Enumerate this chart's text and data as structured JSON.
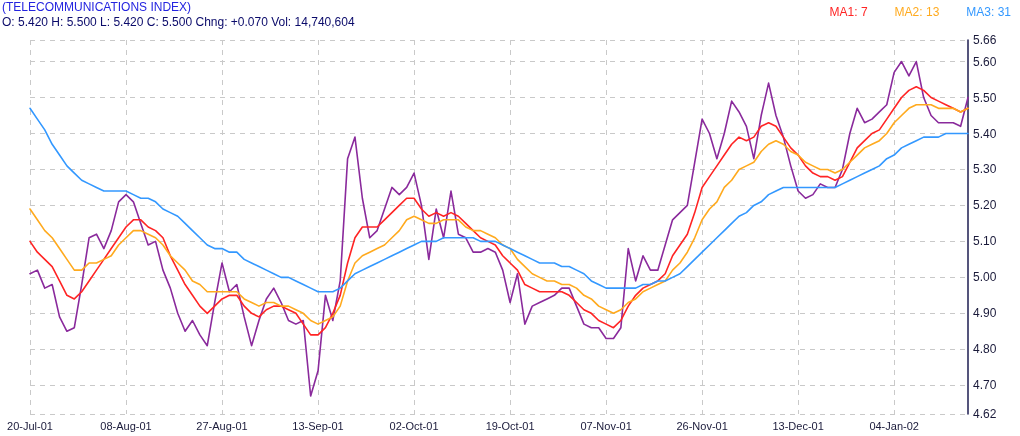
{
  "chart_data": {
    "type": "line",
    "title": "(TELECOMMUNICATIONS INDEX)",
    "subtitle": "O: 5.420 H: 5.500 L: 5.420 C: 5.500 Chng: +0.070 Vol: 14,740,604",
    "categories": [
      "20-Jul-01",
      null,
      null,
      null,
      null,
      null,
      null,
      null,
      null,
      null,
      null,
      null,
      null,
      "08-Aug-01",
      null,
      null,
      null,
      null,
      null,
      null,
      null,
      null,
      null,
      null,
      null,
      null,
      "27-Aug-01",
      null,
      null,
      null,
      null,
      null,
      null,
      null,
      null,
      null,
      null,
      null,
      null,
      "13-Sep-01",
      null,
      null,
      null,
      null,
      null,
      null,
      null,
      null,
      null,
      null,
      null,
      null,
      "02-Oct-01",
      null,
      null,
      null,
      null,
      null,
      null,
      null,
      null,
      null,
      null,
      null,
      null,
      "19-Oct-01",
      null,
      null,
      null,
      null,
      null,
      null,
      null,
      null,
      null,
      null,
      null,
      null,
      "07-Nov-01",
      null,
      null,
      null,
      null,
      null,
      null,
      null,
      null,
      null,
      null,
      null,
      null,
      "26-Nov-01",
      null,
      null,
      null,
      null,
      null,
      null,
      null,
      null,
      null,
      null,
      null,
      null,
      "13-Dec-01",
      null,
      null,
      null,
      null,
      null,
      null,
      null,
      null,
      null,
      null,
      null,
      null,
      "04-Jan-02",
      null,
      null,
      null,
      null,
      null,
      null,
      null,
      null,
      null,
      null
    ],
    "series": [
      {
        "color": "#8a2a9c",
        "values": [
          5.01,
          5.02,
          4.97,
          4.98,
          4.89,
          4.85,
          4.86,
          4.98,
          5.11,
          5.12,
          5.08,
          5.13,
          5.21,
          5.23,
          5.21,
          5.15,
          5.09,
          5.1,
          5.02,
          4.97,
          4.9,
          4.85,
          4.88,
          4.84,
          4.81,
          4.93,
          5.04,
          4.96,
          4.98,
          4.89,
          4.81,
          4.88,
          4.94,
          4.97,
          4.93,
          4.88,
          4.87,
          4.88,
          4.67,
          4.74,
          4.95,
          4.88,
          4.99,
          5.33,
          5.39,
          5.22,
          5.11,
          5.13,
          5.19,
          5.25,
          5.23,
          5.25,
          5.29,
          5.2,
          5.05,
          5.19,
          5.11,
          5.24,
          5.12,
          5.11,
          5.07,
          5.07,
          5.08,
          5.07,
          5.02,
          4.93,
          5.01,
          4.87,
          4.92,
          4.93,
          4.94,
          4.95,
          4.97,
          4.97,
          4.92,
          4.87,
          4.86,
          4.86,
          4.83,
          4.83,
          4.86,
          5.08,
          4.99,
          5.06,
          5.02,
          5.02,
          5.09,
          5.16,
          5.18,
          5.2,
          5.32,
          5.44,
          5.4,
          5.33,
          5.4,
          5.49,
          5.46,
          5.42,
          5.33,
          5.45,
          5.54,
          5.45,
          5.39,
          5.31,
          5.24,
          5.22,
          5.23,
          5.26,
          5.25,
          5.25,
          5.3,
          5.4,
          5.47,
          5.43,
          5.44,
          5.46,
          5.48,
          5.57,
          5.6,
          5.56,
          5.6,
          5.5,
          5.45,
          5.43,
          5.43,
          5.43,
          5.42,
          5.5
        ]
      },
      {
        "name": "MA1: 7",
        "color": "#ff2424",
        "values": [
          5.1,
          5.07,
          5.05,
          5.03,
          4.99,
          4.95,
          4.94,
          4.96,
          4.99,
          5.02,
          5.05,
          5.08,
          5.11,
          5.14,
          5.16,
          5.16,
          5.14,
          5.13,
          5.11,
          5.06,
          5.02,
          4.98,
          4.95,
          4.92,
          4.9,
          4.92,
          4.94,
          4.95,
          4.95,
          4.92,
          4.9,
          4.89,
          4.91,
          4.92,
          4.92,
          4.91,
          4.9,
          4.87,
          4.84,
          4.84,
          4.86,
          4.9,
          4.95,
          5.04,
          5.11,
          5.14,
          5.14,
          5.14,
          5.16,
          5.18,
          5.2,
          5.22,
          5.22,
          5.19,
          5.17,
          5.18,
          5.17,
          5.18,
          5.17,
          5.15,
          5.13,
          5.11,
          5.1,
          5.09,
          5.06,
          5.04,
          5.02,
          4.98,
          4.97,
          4.96,
          4.96,
          4.96,
          4.96,
          4.95,
          4.93,
          4.91,
          4.9,
          4.88,
          4.87,
          4.86,
          4.88,
          4.92,
          4.95,
          4.97,
          4.98,
          4.99,
          5.01,
          5.06,
          5.09,
          5.12,
          5.18,
          5.25,
          5.28,
          5.31,
          5.34,
          5.37,
          5.39,
          5.38,
          5.39,
          5.42,
          5.43,
          5.42,
          5.39,
          5.36,
          5.34,
          5.31,
          5.29,
          5.28,
          5.28,
          5.27,
          5.28,
          5.32,
          5.36,
          5.38,
          5.4,
          5.41,
          5.44,
          5.47,
          5.5,
          5.52,
          5.53,
          5.52,
          5.5,
          5.49,
          5.48,
          5.47,
          5.46,
          5.47
        ]
      },
      {
        "name": "MA2: 13",
        "color": "#ffaa1e",
        "values": [
          5.19,
          5.16,
          5.13,
          5.11,
          5.08,
          5.05,
          5.02,
          5.02,
          5.04,
          5.04,
          5.05,
          5.06,
          5.09,
          5.11,
          5.13,
          5.13,
          5.12,
          5.11,
          5.09,
          5.06,
          5.04,
          5.02,
          4.99,
          4.98,
          4.96,
          4.96,
          4.96,
          4.96,
          4.96,
          4.94,
          4.93,
          4.92,
          4.93,
          4.93,
          4.92,
          4.92,
          4.91,
          4.9,
          4.88,
          4.87,
          4.88,
          4.89,
          4.92,
          4.99,
          5.04,
          5.06,
          5.07,
          5.08,
          5.09,
          5.11,
          5.13,
          5.16,
          5.17,
          5.16,
          5.15,
          5.15,
          5.16,
          5.16,
          5.16,
          5.14,
          5.13,
          5.13,
          5.12,
          5.11,
          5.09,
          5.08,
          5.05,
          5.03,
          5.01,
          5.0,
          4.99,
          4.99,
          4.98,
          4.98,
          4.97,
          4.95,
          4.94,
          4.92,
          4.91,
          4.9,
          4.91,
          4.93,
          4.94,
          4.96,
          4.97,
          4.98,
          4.99,
          5.02,
          5.04,
          5.07,
          5.11,
          5.16,
          5.19,
          5.21,
          5.25,
          5.27,
          5.3,
          5.31,
          5.32,
          5.35,
          5.37,
          5.38,
          5.37,
          5.35,
          5.34,
          5.32,
          5.31,
          5.3,
          5.3,
          5.29,
          5.3,
          5.32,
          5.34,
          5.36,
          5.37,
          5.38,
          5.4,
          5.43,
          5.45,
          5.47,
          5.48,
          5.48,
          5.48,
          5.47,
          5.47,
          5.47,
          5.46,
          5.47
        ]
      },
      {
        "name": "MA3: 31",
        "color": "#3398ff",
        "values": [
          5.47,
          5.44,
          5.41,
          5.37,
          5.34,
          5.31,
          5.29,
          5.27,
          5.26,
          5.25,
          5.24,
          5.24,
          5.24,
          5.24,
          5.23,
          5.22,
          5.22,
          5.21,
          5.19,
          5.18,
          5.17,
          5.15,
          5.13,
          5.11,
          5.09,
          5.08,
          5.08,
          5.07,
          5.07,
          5.05,
          5.04,
          5.03,
          5.02,
          5.01,
          5.0,
          5.0,
          4.99,
          4.98,
          4.97,
          4.96,
          4.96,
          4.96,
          4.97,
          4.99,
          5.01,
          5.02,
          5.03,
          5.04,
          5.05,
          5.06,
          5.07,
          5.08,
          5.09,
          5.1,
          5.1,
          5.1,
          5.11,
          5.11,
          5.11,
          5.11,
          5.11,
          5.1,
          5.1,
          5.1,
          5.09,
          5.08,
          5.07,
          5.06,
          5.05,
          5.04,
          5.04,
          5.04,
          5.03,
          5.03,
          5.02,
          5.01,
          4.99,
          4.98,
          4.97,
          4.97,
          4.97,
          4.97,
          4.97,
          4.98,
          4.98,
          4.99,
          4.99,
          5.0,
          5.01,
          5.03,
          5.05,
          5.07,
          5.09,
          5.11,
          5.13,
          5.15,
          5.17,
          5.18,
          5.2,
          5.21,
          5.23,
          5.24,
          5.25,
          5.25,
          5.25,
          5.25,
          5.25,
          5.25,
          5.25,
          5.25,
          5.26,
          5.27,
          5.28,
          5.29,
          5.3,
          5.31,
          5.33,
          5.34,
          5.36,
          5.37,
          5.38,
          5.39,
          5.39,
          5.39,
          5.4,
          5.4,
          5.4,
          5.4
        ]
      }
    ],
    "ylim": [
      4.62,
      5.66
    ],
    "yticks": [
      4.62,
      {
        "value": 4.7,
        "label": "4.70"
      },
      {
        "value": 4.8,
        "label": "4.80"
      },
      {
        "value": 4.9,
        "label": "4.90"
      },
      {
        "value": 5,
        "label": "5.00"
      },
      {
        "value": 5.1,
        "label": "5.10"
      },
      {
        "value": 5.2,
        "label": "5.20"
      },
      {
        "value": 5.3,
        "label": "5.30"
      },
      {
        "value": 5.4,
        "label": "5.40"
      },
      {
        "value": 5.5,
        "label": "5.50"
      },
      {
        "value": 5.6,
        "label": "5.60"
      },
      5.66
    ],
    "grid": true,
    "legend": "top right",
    "marker": "none",
    "line_style": "solid"
  }
}
